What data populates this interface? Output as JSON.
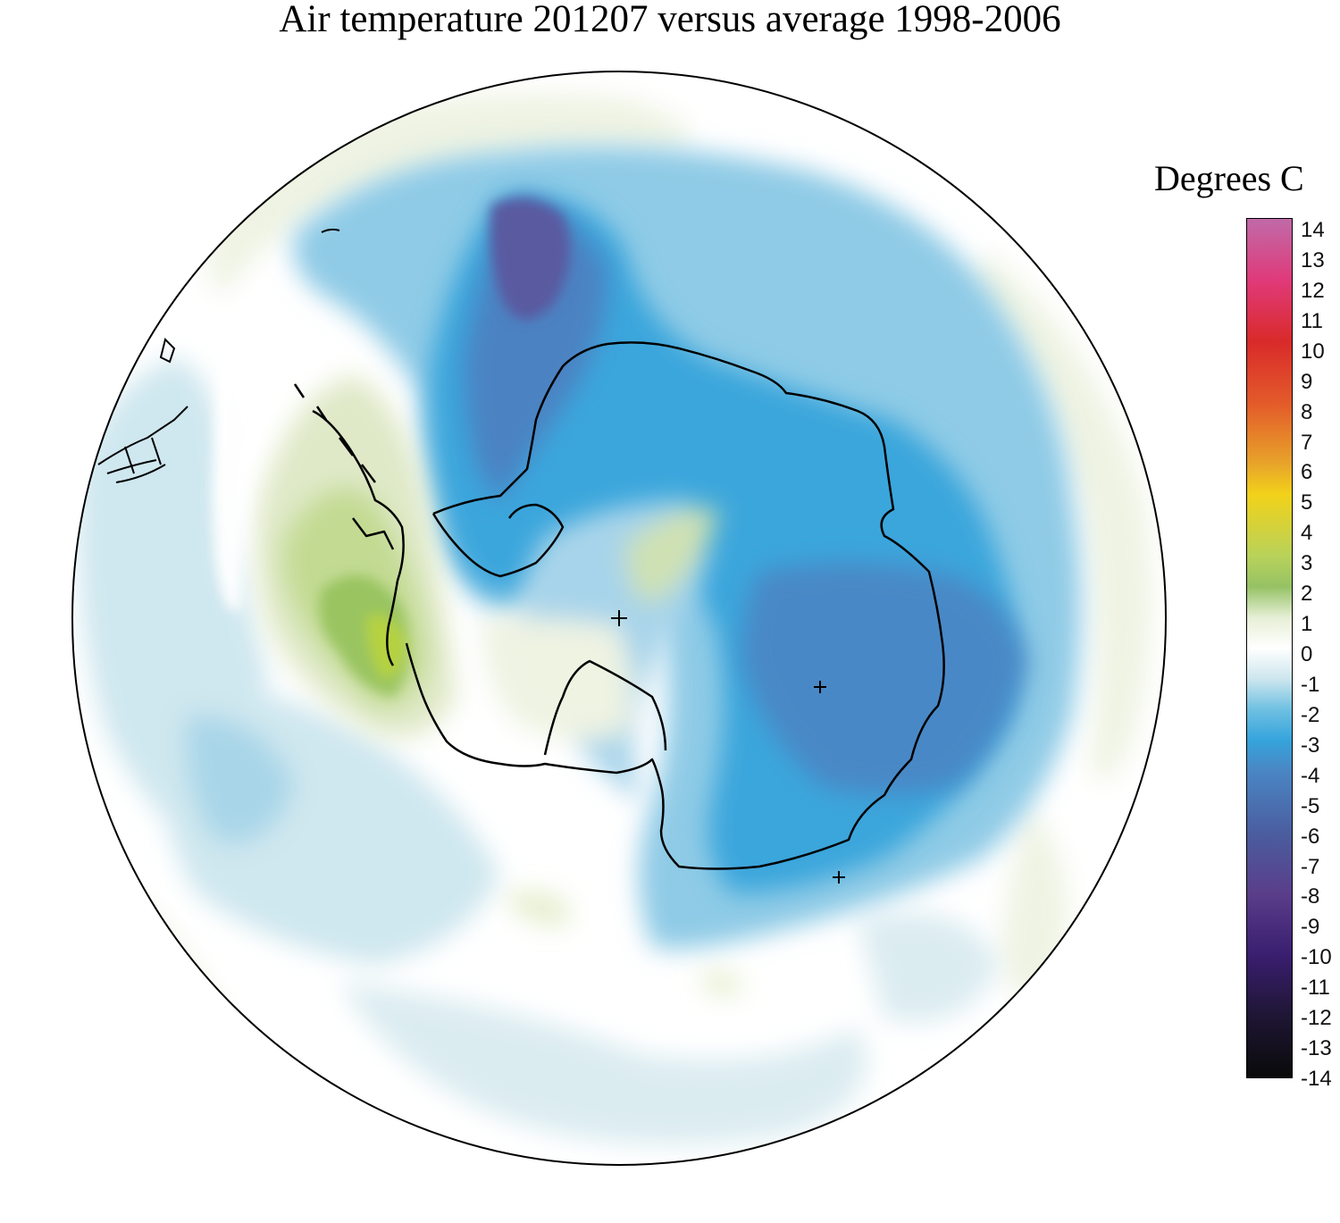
{
  "title": "Air temperature 201207 versus average 1998-2006",
  "legend": {
    "title": "Degrees C",
    "ticks": [
      "14",
      "13",
      "12",
      "11",
      "10",
      "9",
      "8",
      "7",
      "6",
      "5",
      "4",
      "3",
      "2",
      "1",
      "0",
      "-1",
      "-2",
      "-3",
      "-4",
      "-5",
      "-6",
      "-7",
      "-8",
      "-9",
      "-10",
      "-11",
      "-12",
      "-13",
      "-14"
    ],
    "colors": {
      "14": "#c06aa8",
      "12": "#e03a7a",
      "10": "#d92a2a",
      "8": "#e35a2a",
      "6": "#e8a42a",
      "5": "#f2d21a",
      "3": "#b8d25a",
      "2": "#96c265",
      "1": "#e6efd6",
      "0": "#ffffff",
      "-1": "#cde6ee",
      "-2": "#6fc0e2",
      "-3": "#35a4dc",
      "-4": "#4a86c4",
      "-6": "#4a5ea0",
      "-8": "#5a3e8a",
      "-10": "#3a1e70",
      "-12": "#1e1634",
      "-14": "#0a0a0a"
    }
  },
  "map": {
    "projection": "south polar stereographic",
    "features": [
      "antarctica-coastline",
      "antarctic-peninsula",
      "south-pole-marker",
      "cross-marker"
    ]
  }
}
